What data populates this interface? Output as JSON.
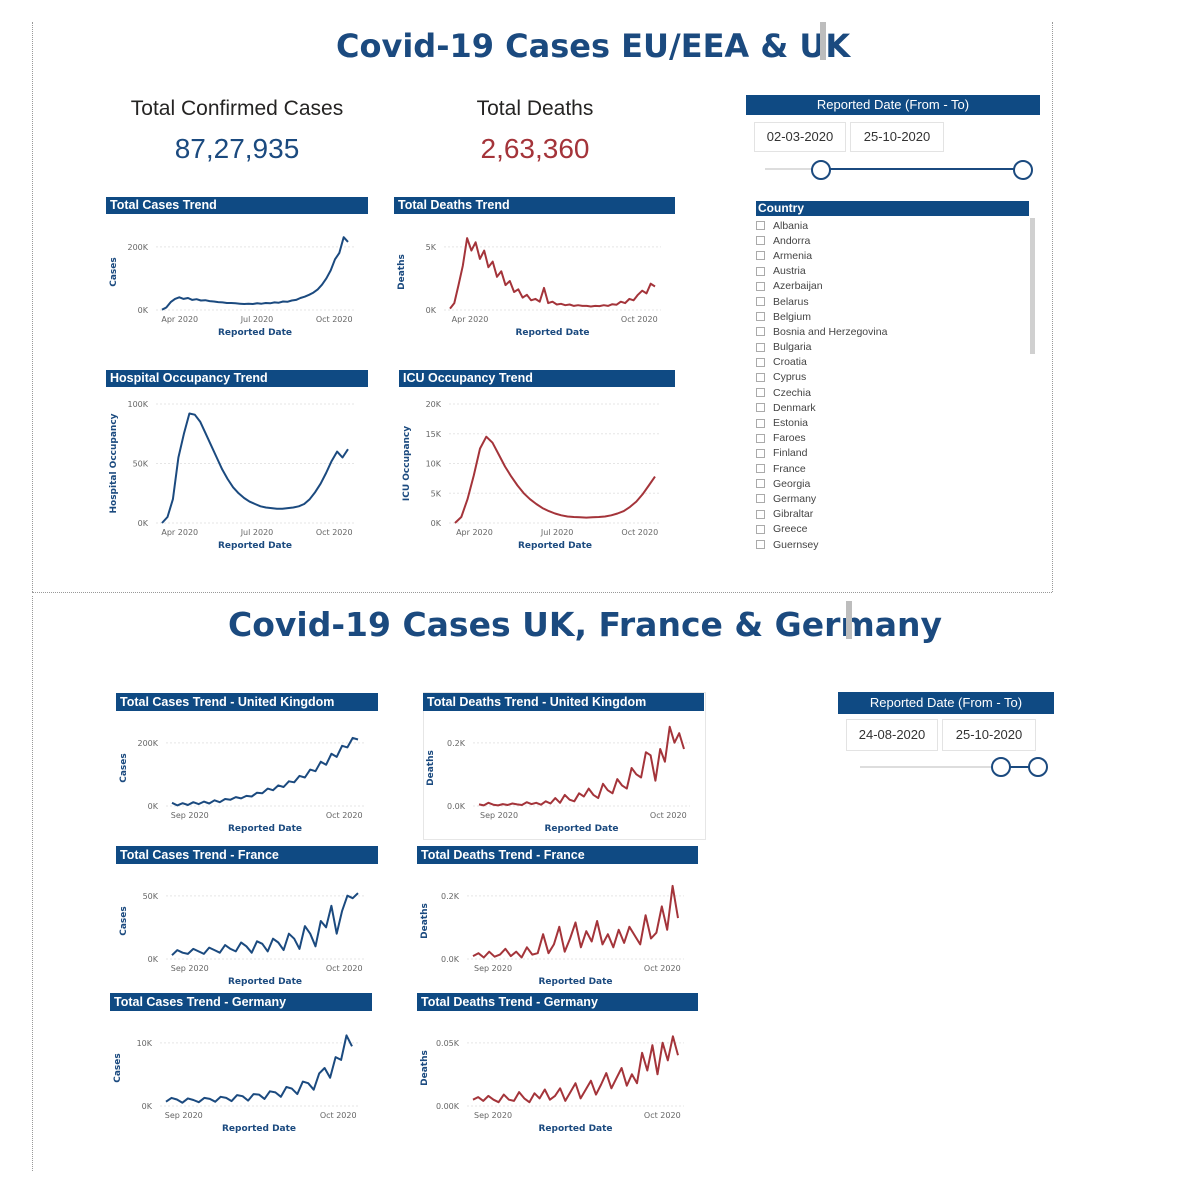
{
  "dashboard1": {
    "title": "Covid-19 Cases EU/EEA & UK",
    "kpis": {
      "cases_label": "Total Confirmed Cases",
      "cases_value": "87,27,935",
      "deaths_label": "Total Deaths",
      "deaths_value": "2,63,360",
      "cases_color": "#1b4a7f",
      "deaths_color": "#a4343a"
    },
    "date_slicer": {
      "header": "Reported Date (From - To)",
      "from": "02-03-2020",
      "to": "25-10-2020"
    },
    "country_slicer": {
      "header": "Country",
      "items": [
        "Albania",
        "Andorra",
        "Armenia",
        "Austria",
        "Azerbaijan",
        "Belarus",
        "Belgium",
        "Bosnia and Herzegovina",
        "Bulgaria",
        "Croatia",
        "Cyprus",
        "Czechia",
        "Denmark",
        "Estonia",
        "Faroes",
        "Finland",
        "France",
        "Georgia",
        "Germany",
        "Gibraltar",
        "Greece",
        "Guernsey"
      ]
    }
  },
  "dashboard2": {
    "title": "Covid-19 Cases UK, France & Germany",
    "date_slicer": {
      "header": "Reported Date (From - To)",
      "from": "24-08-2020",
      "to": "25-10-2020"
    }
  },
  "colors": {
    "blue": "#1b4a7f",
    "red": "#a4343a",
    "header_bg": "#0f4a83"
  },
  "chart_data": [
    {
      "id": "c1",
      "type": "line",
      "title": "Total Cases Trend",
      "xlabel": "Reported Date",
      "ylabel": "Cases",
      "x_ticks": [
        "Apr 2020",
        "Jul 2020",
        "Oct 2020"
      ],
      "y_ticks": [
        "0K",
        "200K"
      ],
      "ylim": [
        0,
        240000
      ],
      "color": "#1b4a7f",
      "series": [
        {
          "values": [
            1000,
            8000,
            25000,
            35000,
            40000,
            35000,
            38000,
            32000,
            34000,
            30000,
            31000,
            28000,
            27000,
            25000,
            24000,
            22000,
            22000,
            21000,
            20000,
            19000,
            20000,
            19000,
            21000,
            20000,
            22000,
            21000,
            24000,
            23000,
            27000,
            26000,
            30000,
            32000,
            38000,
            42000,
            48000,
            55000,
            65000,
            80000,
            100000,
            125000,
            160000,
            180000,
            230000,
            215000
          ]
        }
      ]
    },
    {
      "id": "c2",
      "type": "line",
      "title": "Total Deaths Trend",
      "xlabel": "Reported Date",
      "ylabel": "Deaths",
      "x_ticks": [
        "Apr 2020",
        "Oct 2020"
      ],
      "y_ticks": [
        "0K",
        "5K"
      ],
      "ylim": [
        0,
        5500
      ],
      "color": "#a4343a",
      "series": [
        {
          "values": [
            100,
            500,
            1800,
            3200,
            5200,
            4300,
            4900,
            3700,
            4300,
            3100,
            3500,
            2400,
            2800,
            1800,
            2100,
            1300,
            1500,
            900,
            1100,
            700,
            800,
            600,
            1600,
            500,
            600,
            400,
            450,
            350,
            400,
            300,
            350,
            300,
            300,
            250,
            300,
            280,
            350,
            300,
            420,
            380,
            600,
            500,
            800,
            700,
            1100,
            1400,
            1200,
            1900,
            1700
          ]
        }
      ]
    },
    {
      "id": "c3",
      "type": "line",
      "title": "Hospital Occupancy Trend",
      "xlabel": "Reported Date",
      "ylabel": "Hospital Occupancy",
      "x_ticks": [
        "Apr 2020",
        "Jul 2020",
        "Oct 2020"
      ],
      "y_ticks": [
        "0K",
        "50K",
        "100K"
      ],
      "ylim": [
        0,
        100000
      ],
      "color": "#1b4a7f",
      "series": [
        {
          "values": [
            0,
            5000,
            20000,
            55000,
            75000,
            92000,
            91000,
            85000,
            75000,
            65000,
            55000,
            45000,
            37000,
            30000,
            25000,
            21000,
            18000,
            16000,
            14000,
            13000,
            12500,
            12000,
            12000,
            12500,
            13000,
            14000,
            16000,
            20000,
            26000,
            33000,
            42000,
            52000,
            60000,
            55000,
            62000
          ]
        }
      ]
    },
    {
      "id": "c4",
      "type": "line",
      "title": "ICU Occupancy Trend",
      "xlabel": "Reported Date",
      "ylabel": "ICU Occupancy",
      "x_ticks": [
        "Apr 2020",
        "Jul 2020",
        "Oct 2020"
      ],
      "y_ticks": [
        "0K",
        "5K",
        "10K",
        "15K",
        "20K"
      ],
      "ylim": [
        0,
        20000
      ],
      "color": "#a4343a",
      "series": [
        {
          "values": [
            0,
            1000,
            4000,
            8000,
            12500,
            14500,
            13500,
            11500,
            9500,
            7800,
            6300,
            5000,
            4000,
            3200,
            2500,
            2000,
            1600,
            1300,
            1100,
            1000,
            950,
            900,
            950,
            1000,
            1100,
            1300,
            1600,
            2000,
            2700,
            3600,
            4800,
            6300,
            7800
          ]
        }
      ]
    },
    {
      "id": "c5",
      "type": "line",
      "title": "Total Cases Trend - United Kingdom",
      "xlabel": "Reported Date",
      "ylabel": "Cases",
      "x_ticks": [
        "Sep 2020",
        "Oct 2020"
      ],
      "y_ticks": [
        "0K",
        "200K"
      ],
      "ylim": [
        0,
        240000
      ],
      "color": "#1b4a7f",
      "series": [
        {
          "values": [
            10000,
            2000,
            9000,
            3000,
            12000,
            6000,
            14000,
            8000,
            18000,
            12000,
            22000,
            20000,
            28000,
            24000,
            32000,
            30000,
            42000,
            40000,
            55000,
            50000,
            65000,
            60000,
            78000,
            75000,
            95000,
            90000,
            115000,
            110000,
            140000,
            130000,
            165000,
            155000,
            190000,
            185000,
            215000,
            210000
          ]
        }
      ]
    },
    {
      "id": "c6",
      "type": "line",
      "title": "Total Deaths Trend - United Kingdom",
      "xlabel": "Reported Date",
      "ylabel": "Deaths",
      "x_ticks": [
        "Sep 2020",
        "Oct 2020"
      ],
      "y_ticks": [
        "0.0K",
        "0.2K"
      ],
      "ylim": [
        0,
        240
      ],
      "color": "#a4343a",
      "series": [
        {
          "values": [
            5,
            2,
            10,
            4,
            2,
            6,
            3,
            8,
            5,
            3,
            12,
            6,
            10,
            4,
            15,
            8,
            25,
            10,
            35,
            20,
            15,
            40,
            30,
            55,
            35,
            25,
            70,
            50,
            40,
            85,
            65,
            55,
            120,
            100,
            90,
            170,
            160,
            80,
            180,
            140,
            250,
            200,
            230,
            180
          ]
        }
      ]
    },
    {
      "id": "c7",
      "type": "line",
      "title": "Total Cases Trend - France",
      "xlabel": "Reported Date",
      "ylabel": "Cases",
      "x_ticks": [
        "Sep 2020",
        "Oct 2020"
      ],
      "y_ticks": [
        "0K",
        "50K"
      ],
      "ylim": [
        0,
        60000
      ],
      "color": "#1b4a7f",
      "series": [
        {
          "values": [
            3000,
            7000,
            5000,
            4000,
            8000,
            6000,
            4000,
            9000,
            7000,
            5000,
            11000,
            8000,
            6000,
            13000,
            10000,
            5000,
            14000,
            12000,
            6000,
            16000,
            13000,
            7000,
            20000,
            16000,
            8000,
            26000,
            20000,
            10000,
            30000,
            25000,
            42000,
            20000,
            38000,
            50000,
            48000,
            52000
          ]
        }
      ]
    },
    {
      "id": "c8",
      "type": "line",
      "title": "Total Deaths Trend - France",
      "xlabel": "Reported Date",
      "ylabel": "Deaths",
      "x_ticks": [
        "Sep 2020",
        "Oct 2020"
      ],
      "y_ticks": [
        "0.0K",
        "0.2K"
      ],
      "ylim": [
        0,
        260
      ],
      "color": "#a4343a",
      "series": [
        {
          "values": [
            10,
            20,
            5,
            25,
            8,
            15,
            35,
            10,
            25,
            5,
            40,
            15,
            20,
            85,
            20,
            50,
            110,
            25,
            70,
            125,
            40,
            95,
            60,
            130,
            50,
            85,
            40,
            100,
            55,
            110,
            80,
            50,
            150,
            70,
            90,
            180,
            100,
            250,
            140
          ]
        }
      ]
    },
    {
      "id": "c9",
      "type": "line",
      "title": "Total Cases Trend - Germany",
      "xlabel": "Reported Date",
      "ylabel": "Cases",
      "x_ticks": [
        "Sep 2020",
        "Oct 2020"
      ],
      "y_ticks": [
        "0K",
        "10K"
      ],
      "ylim": [
        0,
        14000
      ],
      "color": "#1b4a7f",
      "series": [
        {
          "values": [
            800,
            1500,
            1200,
            600,
            1400,
            1100,
            700,
            1500,
            1300,
            800,
            1700,
            1500,
            900,
            2000,
            1800,
            1000,
            2200,
            2100,
            1300,
            2700,
            2500,
            1700,
            3500,
            3200,
            2200,
            4500,
            4200,
            3000,
            6000,
            7000,
            5200,
            9000,
            8500,
            13000,
            11000
          ]
        }
      ]
    },
    {
      "id": "c10",
      "type": "line",
      "title": "Total Deaths Trend - Germany",
      "xlabel": "Reported Date",
      "ylabel": "Deaths",
      "x_ticks": [
        "Sep 2020",
        "Oct 2020"
      ],
      "y_ticks": [
        "0.00K",
        "0.05K"
      ],
      "ylim": [
        0,
        60
      ],
      "color": "#a4343a",
      "series": [
        {
          "values": [
            5,
            7,
            4,
            8,
            5,
            3,
            9,
            5,
            4,
            11,
            6,
            3,
            10,
            6,
            13,
            5,
            8,
            14,
            4,
            11,
            18,
            6,
            13,
            20,
            9,
            17,
            26,
            14,
            22,
            30,
            16,
            25,
            18,
            42,
            28,
            48,
            25,
            50,
            36,
            55,
            40
          ]
        }
      ]
    }
  ]
}
